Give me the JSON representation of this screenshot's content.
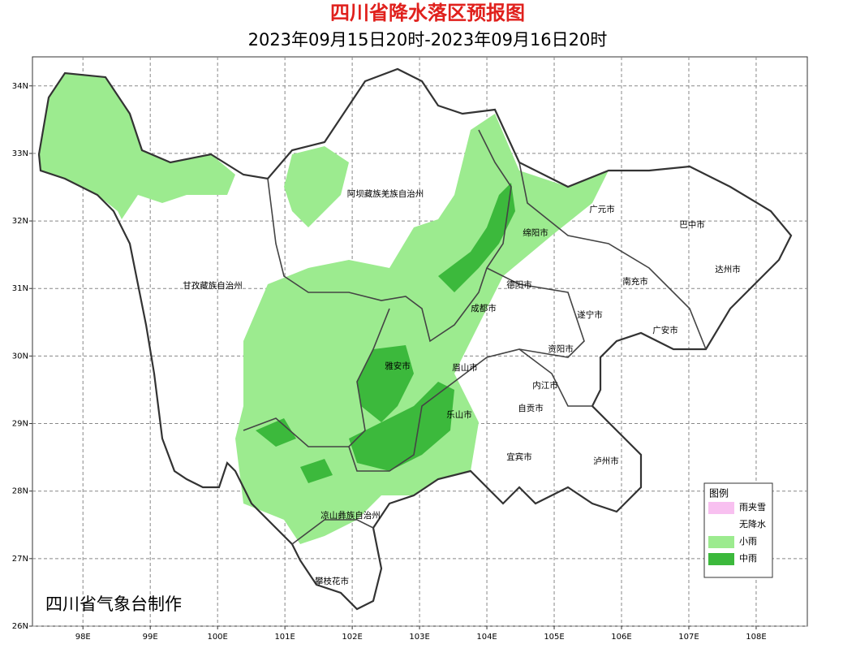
{
  "map": {
    "title": "四川省降水落区预报图",
    "subtitle": "2023年09月15日20时-2023年09月16日20时",
    "xlim": [
      97.25,
      108.76
    ],
    "ylim": [
      26,
      34.43
    ],
    "xticks": [
      {
        "value": 98,
        "label": "98E"
      },
      {
        "value": 99,
        "label": "99E"
      },
      {
        "value": 100,
        "label": "100E"
      },
      {
        "value": 101,
        "label": "101E"
      },
      {
        "value": 102,
        "label": "102E"
      },
      {
        "value": 103,
        "label": "103E"
      },
      {
        "value": 104,
        "label": "104E"
      },
      {
        "value": 105,
        "label": "105E"
      },
      {
        "value": 106,
        "label": "106E"
      },
      {
        "value": 107,
        "label": "107E"
      },
      {
        "value": 108,
        "label": "108E"
      }
    ],
    "yticks": [
      {
        "value": 26,
        "label": "26N"
      },
      {
        "value": 27,
        "label": "27N"
      },
      {
        "value": 28,
        "label": "28N"
      },
      {
        "value": 29,
        "label": "29N"
      },
      {
        "value": 30,
        "label": "30N"
      },
      {
        "value": 31,
        "label": "31N"
      },
      {
        "value": 32,
        "label": "32N"
      },
      {
        "value": 33,
        "label": "33N"
      },
      {
        "value": 34,
        "label": "34N"
      }
    ],
    "places": [
      "阿坝藏族羌族自治州",
      "广元市",
      "巴中市",
      "绵阳市",
      "达州市",
      "甘孜藏族自治州",
      "德阳市",
      "南充市",
      "成都市",
      "遂宁市",
      "广安市",
      "资阳市",
      "雅安市",
      "眉山市",
      "内江市",
      "自贡市",
      "乐山市",
      "宜宾市",
      "泸州市",
      "凉山彝族自治州",
      "攀枝花市"
    ],
    "legend": {
      "title": "图例",
      "items": [
        {
          "name": "雨夹雪",
          "color": "#f8c0f0"
        },
        {
          "name": "无降水",
          "color": "#ffffff"
        },
        {
          "name": "小雨",
          "color": "#9ceb8f"
        },
        {
          "name": "中雨",
          "color": "#3cb93c"
        }
      ]
    },
    "credit": "四川省气象台制作"
  }
}
